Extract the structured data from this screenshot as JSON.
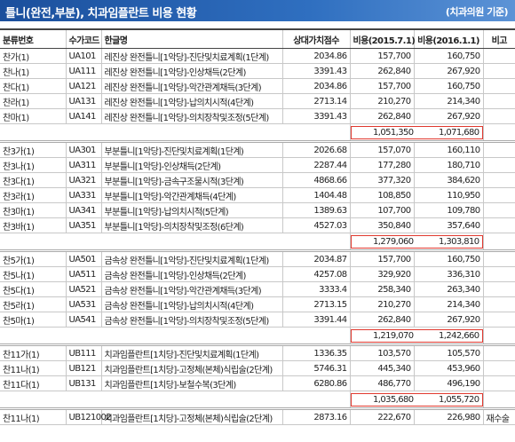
{
  "header": {
    "title": "틀니(완전,부분), 치과임플란트 비용 현황",
    "note": "(치과의원 기준)"
  },
  "table": {
    "columns": [
      "분류번호",
      "수가코드",
      "한글명",
      "상대가치점수",
      "비용(2015.7.1)",
      "비용(2016.1.1)",
      "비고"
    ],
    "groups": [
      {
        "rows": [
          [
            "찬가(1)",
            "UA101",
            "레진상 완전틀니[1악당]-진단및치료계획(1단계)",
            "2034.86",
            "157,700",
            "160,750"
          ],
          [
            "찬나(1)",
            "UA111",
            "레진상 완전틀니[1악당]-인상채득(2단계)",
            "3391.43",
            "262,840",
            "267,920"
          ],
          [
            "찬다(1)",
            "UA121",
            "레진상 완전틀니[1악당]-악간관계채득(3단계)",
            "2034.86",
            "157,700",
            "160,750"
          ],
          [
            "찬라(1)",
            "UA131",
            "레진상 완전틀니[1악당]-납의치시적(4단계)",
            "2713.14",
            "210,270",
            "214,340"
          ],
          [
            "찬마(1)",
            "UA141",
            "레진상 완전틀니[1악당]-의치장착및조정(5단계)",
            "3391.43",
            "262,840",
            "267,920"
          ]
        ],
        "subtotal": [
          "1,051,350",
          "1,071,680"
        ]
      },
      {
        "rows": [
          [
            "찬3가(1)",
            "UA301",
            "부분틀니[1악당]-진단및치료계획(1단계)",
            "2026.68",
            "157,070",
            "160,110"
          ],
          [
            "찬3나(1)",
            "UA311",
            "부분틀니[1악당]-인상채득(2단계)",
            "2287.44",
            "177,280",
            "180,710"
          ],
          [
            "찬3다(1)",
            "UA321",
            "부분틀니[1악당]-금속구조물시적(3단계)",
            "4868.66",
            "377,320",
            "384,620"
          ],
          [
            "찬3라(1)",
            "UA331",
            "부분틀니[1악당]-악간관계채득(4단계)",
            "1404.48",
            "108,850",
            "110,950"
          ],
          [
            "찬3마(1)",
            "UA341",
            "부분틀니[1악당]-납의치시적(5단계)",
            "1389.63",
            "107,700",
            "109,780"
          ],
          [
            "찬3바(1)",
            "UA351",
            "부분틀니[1악당]-의치장착및조정(6단계)",
            "4527.03",
            "350,840",
            "357,640"
          ]
        ],
        "subtotal": [
          "1,279,060",
          "1,303,810"
        ]
      },
      {
        "rows": [
          [
            "찬5가(1)",
            "UA501",
            "금속상 완전틀니[1악당]-진단및치료계획(1단계)",
            "2034.87",
            "157,700",
            "160,750"
          ],
          [
            "찬5나(1)",
            "UA511",
            "금속상 완전틀니[1악당]-인상채득(2단계)",
            "4257.08",
            "329,920",
            "336,310"
          ],
          [
            "찬5다(1)",
            "UA521",
            "금속상 완전틀니[1악당]-악간관계채득(3단계)",
            "3333.4",
            "258,340",
            "263,340"
          ],
          [
            "찬5라(1)",
            "UA531",
            "금속상 완전틀니[1악당]-납의치시적(4단계)",
            "2713.15",
            "210,270",
            "214,340"
          ],
          [
            "찬5마(1)",
            "UA541",
            "금속상 완전틀니[1악당]-의치장착및조정(5단계)",
            "3391.44",
            "262,840",
            "267,920"
          ]
        ],
        "subtotal": [
          "1,219,070",
          "1,242,660"
        ]
      },
      {
        "rows": [
          [
            "찬11가(1)",
            "UB111",
            "치과임플란트[1치당]-진단및치료계획(1단계)",
            "1336.35",
            "103,570",
            "105,570"
          ],
          [
            "찬11나(1)",
            "UB121",
            "치과임플란트[1치당]-고정체(본체)식립술(2단계)",
            "5746.31",
            "445,340",
            "453,960"
          ],
          [
            "찬11다(1)",
            "UB131",
            "치과임플란트[1치당]-보철수복(3단계)",
            "6280.86",
            "486,770",
            "496,190"
          ]
        ],
        "subtotal": [
          "1,035,680",
          "1,055,720"
        ]
      },
      {
        "rows": [
          [
            "찬11나(1)",
            "UB121002",
            "치과임플란트[1치당]-고정체(본체)식립술(2단계)",
            "2873.16",
            "222,670",
            "226,980",
            "재수술"
          ]
        ]
      }
    ]
  }
}
